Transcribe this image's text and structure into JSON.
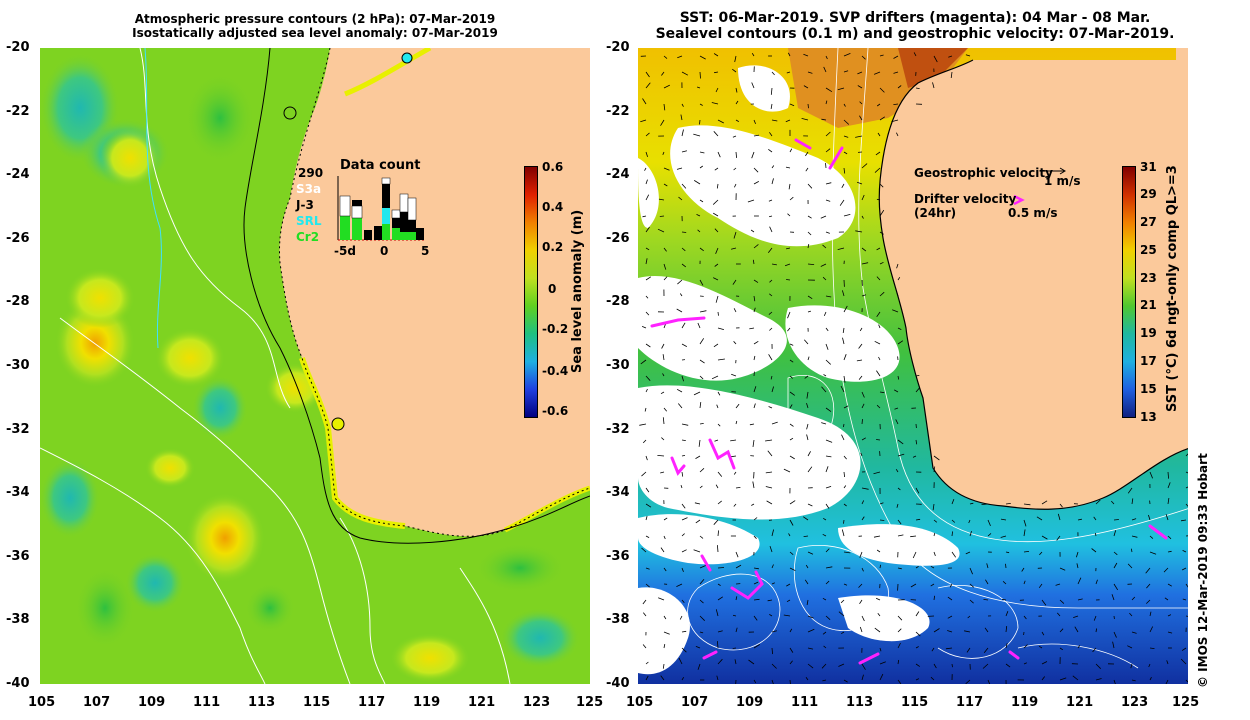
{
  "left_map": {
    "title_line1": "Atmospheric pressure contours (2 hPa): 07-Mar-2019",
    "title_line2": "Isostatically adjusted sea level anomaly: 07-Mar-2019",
    "lat_labels": [
      "-20",
      "-22",
      "-24",
      "-26",
      "-28",
      "-30",
      "-32",
      "-34",
      "-36",
      "-38",
      "-40"
    ],
    "lon_labels": [
      "105",
      "107",
      "109",
      "111",
      "113",
      "115",
      "117",
      "119",
      "121",
      "123",
      "125"
    ],
    "colorbar": {
      "label": "Sea level anomaly (m)",
      "ticks": [
        "0.6",
        "0.4",
        "0.2",
        "0",
        "-0.2",
        "-0.4",
        "-0.6"
      ]
    },
    "data_count": {
      "title": "Data count",
      "total": "290",
      "legend": [
        {
          "name": "S3a",
          "color": "#ffffff"
        },
        {
          "name": "J-3",
          "color": "#000000"
        },
        {
          "name": "SRL",
          "color": "#22e8ee"
        },
        {
          "name": "Cr2",
          "color": "#22dd22"
        }
      ],
      "axis_labels": [
        "-5d",
        "0",
        "5"
      ]
    }
  },
  "right_map": {
    "title_line1": "SST: 06-Mar-2019. SVP drifters (magenta): 04 Mar - 08 Mar.",
    "title_line2": "Sealevel contours (0.1 m) and geostrophic velocity: 07-Mar-2019.",
    "lat_labels": [
      "-20",
      "-22",
      "-24",
      "-26",
      "-28",
      "-30",
      "-32",
      "-34",
      "-36",
      "-38",
      "-40"
    ],
    "lon_labels": [
      "105",
      "107",
      "109",
      "111",
      "113",
      "115",
      "117",
      "119",
      "121",
      "123",
      "125"
    ],
    "geostrophic_label": "Geostrophic velocity",
    "geostrophic_scale": "1 m/s",
    "drifter_label_line1": "Drifter velocity",
    "drifter_label_line2": "(24hr)",
    "drifter_scale": "0.5 m/s",
    "colorbar": {
      "label": "SST (°C) 6d ngt-only comp QL>=3",
      "ticks": [
        "31",
        "29",
        "27",
        "25",
        "23",
        "21",
        "19",
        "17",
        "15",
        "13"
      ]
    },
    "credit": "© IMOS 12-Mar-2019 09:33 Hobart"
  },
  "colors": {
    "land": "#fbc99b",
    "ocean_green": "#7ed321",
    "magenta": "#ff22ff"
  }
}
